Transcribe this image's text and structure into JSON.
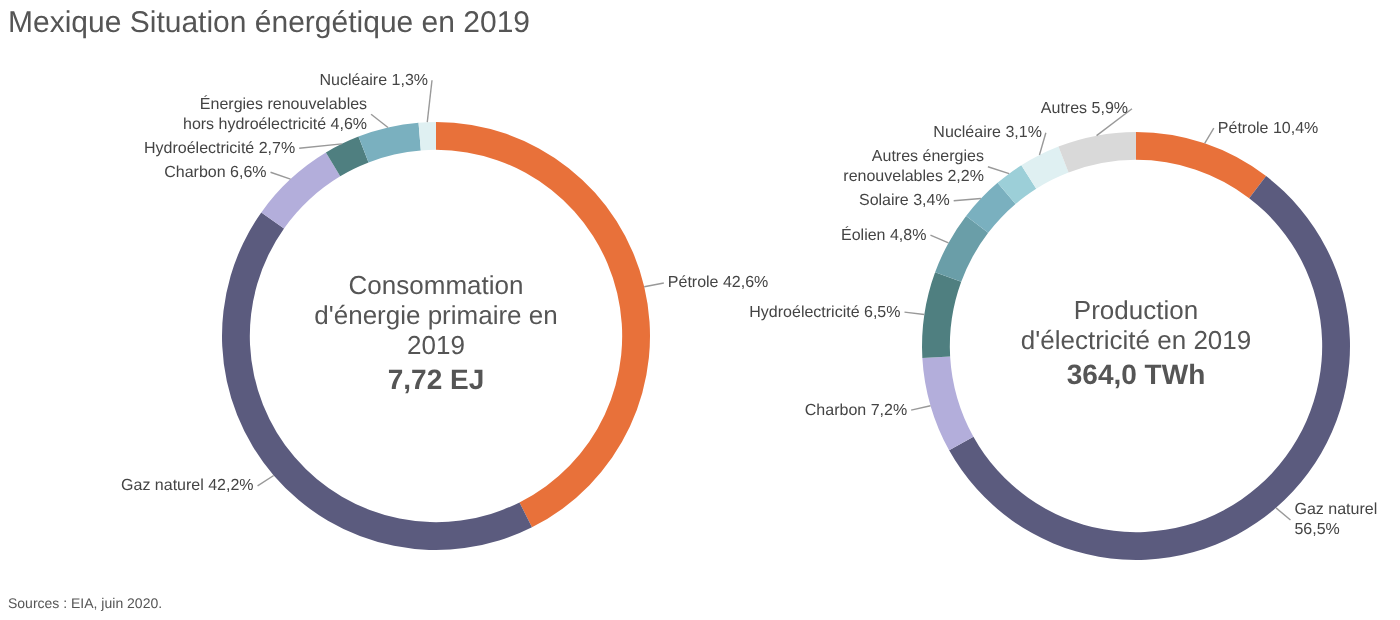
{
  "chart_data": [
    {
      "type": "donut",
      "title": "Consommation d'énergie primaire en 2019",
      "subtitle": "7,72 EJ",
      "annotations": [
        "Mexique Situation énergétique en 2019",
        "Sources : EIA, juin 2020."
      ],
      "categories": [
        "Pétrole",
        "Gaz naturel",
        "Charbon",
        "Hydroélectricité",
        "Énergies renouvelables hors hydroélectricité",
        "Nucléaire"
      ],
      "values": [
        42.6,
        42.2,
        6.6,
        2.7,
        4.6,
        1.3
      ],
      "value_labels": [
        "42,6%",
        "42,2%",
        "6,6%",
        "2,7%",
        "4,6%",
        "1,3%"
      ],
      "colors": [
        "#e8713a",
        "#5b5b7e",
        "#b3aedb",
        "#4f7f80",
        "#7ab0bf",
        "#dff0f2"
      ],
      "legend": false
    },
    {
      "type": "donut",
      "title": "Production d'électricité en 2019",
      "subtitle": "364,0 TWh",
      "categories": [
        "Pétrole",
        "Gaz naturel",
        "Charbon",
        "Hydroélectricité",
        "Éolien",
        "Solaire",
        "Autres énergies renouvelables",
        "Nucléaire",
        "Autres"
      ],
      "values": [
        10.4,
        56.5,
        7.2,
        6.5,
        4.8,
        3.4,
        2.2,
        3.1,
        5.9
      ],
      "value_labels": [
        "10,4%",
        "56,5%",
        "7,2%",
        "6,5%",
        "4,8%",
        "3,4%",
        "2,2%",
        "3,1%",
        "5,9%"
      ],
      "colors": [
        "#e8713a",
        "#5b5b7e",
        "#b3aedb",
        "#4f7f80",
        "#6a9ea8",
        "#7ab0bf",
        "#9ccfd8",
        "#dff0f2",
        "#d9d9d9"
      ],
      "legend": false
    }
  ]
}
